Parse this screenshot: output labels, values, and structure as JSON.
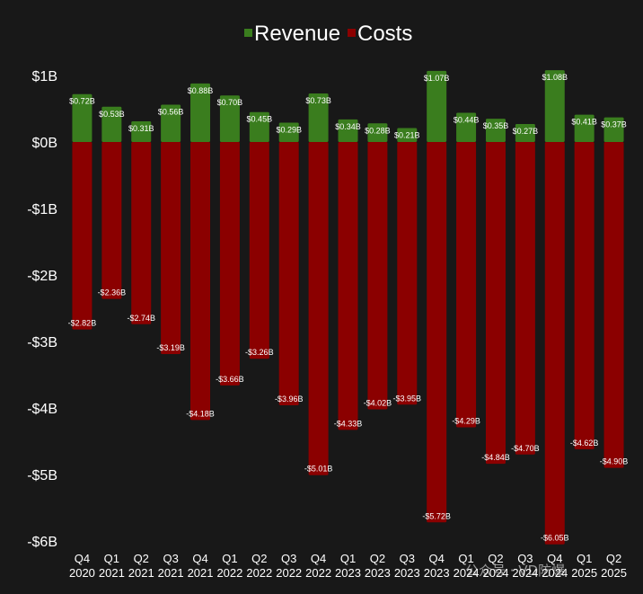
{
  "chart_data": {
    "type": "bar",
    "stacked": true,
    "legend_position": "top-center",
    "grid": false,
    "categories": [
      [
        "Q4",
        "2020"
      ],
      [
        "Q1",
        "2021"
      ],
      [
        "Q2",
        "2021"
      ],
      [
        "Q3",
        "2021"
      ],
      [
        "Q4",
        "2021"
      ],
      [
        "Q1",
        "2022"
      ],
      [
        "Q2",
        "2022"
      ],
      [
        "Q3",
        "2022"
      ],
      [
        "Q4",
        "2022"
      ],
      [
        "Q1",
        "2023"
      ],
      [
        "Q2",
        "2023"
      ],
      [
        "Q3",
        "2023"
      ],
      [
        "Q4",
        "2023"
      ],
      [
        "Q1",
        "2024"
      ],
      [
        "Q2",
        "2024"
      ],
      [
        "Q3",
        "2024"
      ],
      [
        "Q4",
        "2024"
      ],
      [
        "Q1",
        "2025"
      ],
      [
        "Q2",
        "2025"
      ]
    ],
    "series": [
      {
        "name": "Revenue",
        "color": "#3a7d1e",
        "values": [
          0.72,
          0.53,
          0.31,
          0.56,
          0.88,
          0.7,
          0.45,
          0.29,
          0.73,
          0.34,
          0.28,
          0.21,
          1.07,
          0.44,
          0.35,
          0.27,
          1.08,
          0.41,
          0.37
        ],
        "labels": [
          "$0.72B",
          "$0.53B",
          "$0.31B",
          "$0.56B",
          "$0.88B",
          "$0.70B",
          "$0.45B",
          "$0.29B",
          "$0.73B",
          "$0.34B",
          "$0.28B",
          "$0.21B",
          "$1.07B",
          "$0.44B",
          "$0.35B",
          "$0.27B",
          "$1.08B",
          "$0.41B",
          "$0.37B"
        ]
      },
      {
        "name": "Costs",
        "color": "#8b0000",
        "values": [
          -2.82,
          -2.36,
          -2.74,
          -3.19,
          -4.18,
          -3.66,
          -3.26,
          -3.96,
          -5.01,
          -4.33,
          -4.02,
          -3.95,
          -5.72,
          -4.29,
          -4.84,
          -4.7,
          -6.05,
          -4.62,
          -4.9
        ],
        "labels": [
          "-$2.82B",
          "-$2.36B",
          "-$2.74B",
          "-$3.19B",
          "-$4.18B",
          "-$3.66B",
          "-$3.26B",
          "-$3.96B",
          "-$5.01B",
          "-$4.33B",
          "-$4.02B",
          "-$3.95B",
          "-$5.72B",
          "-$4.29B",
          "-$4.84B",
          "-$4.70B",
          "-$6.05B",
          "-$4.62B",
          "-$4.90B"
        ]
      }
    ],
    "ylim": [
      -6,
      1
    ],
    "yticks": [
      1,
      0,
      -1,
      -2,
      -3,
      -4,
      -5,
      -6
    ],
    "ytick_labels": [
      "$1B",
      "$0B",
      "-$1B",
      "-$2B",
      "-$3B",
      "-$4B",
      "-$5B",
      "-$6B"
    ],
    "watermark": "公众号 · VD防爆"
  }
}
